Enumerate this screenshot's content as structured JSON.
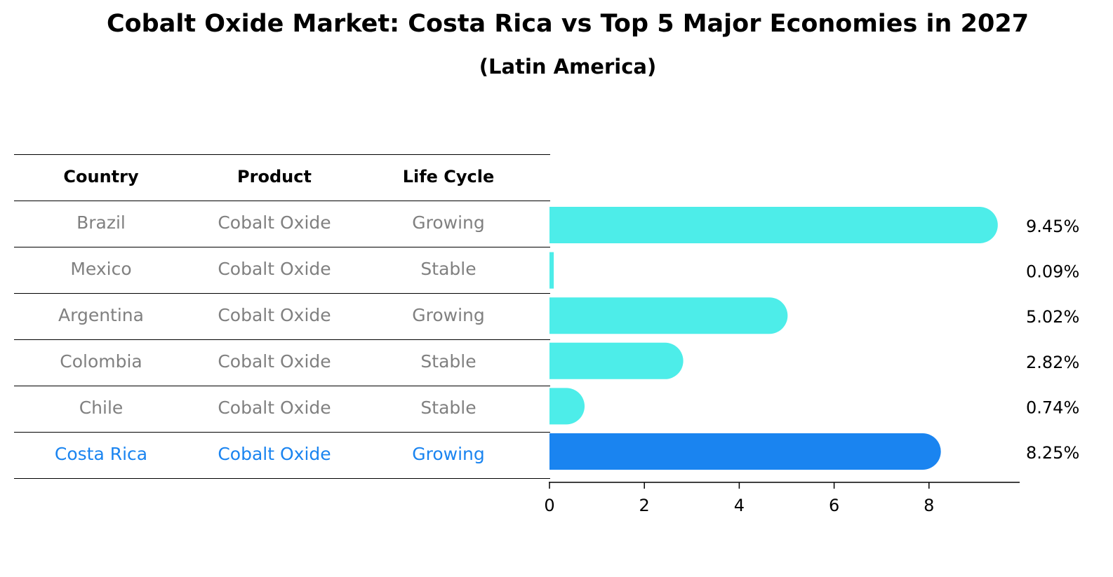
{
  "chart_data": {
    "type": "bar",
    "orientation": "horizontal",
    "title": "Cobalt Oxide Market: Costa Rica vs Top 5 Major Economies in 2027",
    "subtitle": "(Latin America)",
    "table": {
      "headers": [
        "Country",
        "Product",
        "Life Cycle"
      ],
      "rows": [
        [
          "Brazil",
          "Cobalt Oxide",
          "Growing"
        ],
        [
          "Mexico",
          "Cobalt Oxide",
          "Stable"
        ],
        [
          "Argentina",
          "Cobalt Oxide",
          "Growing"
        ],
        [
          "Colombia",
          "Cobalt Oxide",
          "Stable"
        ],
        [
          "Chile",
          "Cobalt Oxide",
          "Stable"
        ],
        [
          "Costa Rica",
          "Cobalt Oxide",
          "Growing"
        ]
      ],
      "highlight_row": 5
    },
    "categories": [
      "Brazil",
      "Mexico",
      "Argentina",
      "Colombia",
      "Chile",
      "Costa Rica"
    ],
    "values": [
      9.45,
      0.09,
      5.02,
      2.82,
      0.74,
      8.25
    ],
    "value_labels": [
      "9.45%",
      "0.09%",
      "5.02%",
      "2.82%",
      "0.74%",
      "8.25%"
    ],
    "xlim": [
      0,
      9.9
    ],
    "xticks": [
      0,
      2,
      4,
      6,
      8
    ],
    "xtick_labels": [
      "0",
      "2",
      "4",
      "6",
      "8"
    ],
    "colors": {
      "default": "#4dede9",
      "highlight": "#1a84f0",
      "table_text": "#808080"
    }
  }
}
